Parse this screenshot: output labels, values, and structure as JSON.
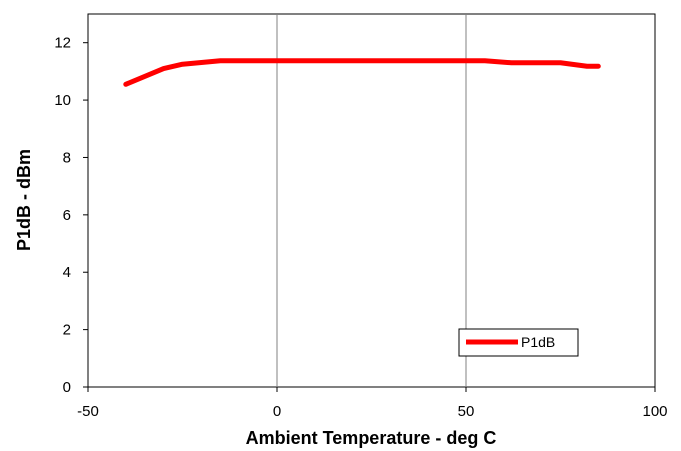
{
  "chart_data": {
    "type": "line",
    "title": "",
    "xlabel": "Ambient Temperature - deg C",
    "ylabel": "P1dB - dBm",
    "xlim": [
      -50,
      100
    ],
    "ylim": [
      0,
      13
    ],
    "xticks": [
      -50,
      0,
      50,
      100
    ],
    "yticks": [
      0,
      2,
      4,
      6,
      8,
      10,
      12
    ],
    "grid": "vertical-only",
    "legend_position": "bottom-right",
    "series": [
      {
        "name": "P1dB",
        "color": "#ff0000",
        "x": [
          -40,
          -30,
          -25,
          -15,
          0,
          25,
          55,
          62,
          75,
          82,
          85
        ],
        "y": [
          10.55,
          11.1,
          11.25,
          11.37,
          11.37,
          11.37,
          11.37,
          11.3,
          11.3,
          11.18,
          11.18
        ]
      }
    ]
  }
}
